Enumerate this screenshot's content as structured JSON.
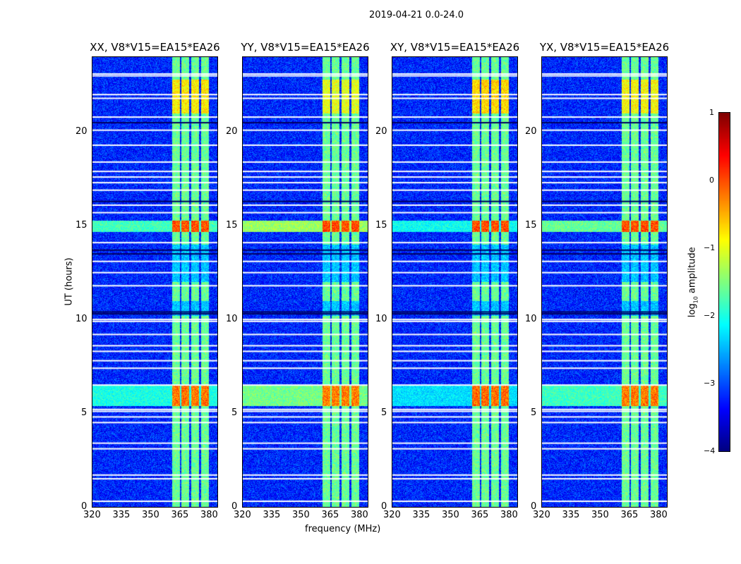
{
  "chart_data": {
    "type": "heatmap",
    "title": "2019-04-21 0.0-24.0",
    "xlabel": "frequency (MHz)",
    "ylabel": "UT (hours)",
    "xlim": [
      320,
      384
    ],
    "ylim": [
      0,
      24
    ],
    "xticks": [
      "320",
      "335",
      "350",
      "365",
      "380"
    ],
    "xtick_values": [
      320,
      335,
      350,
      365,
      380
    ],
    "yticks": [
      "0",
      "5",
      "10",
      "15",
      "20"
    ],
    "ytick_values": [
      0,
      5,
      10,
      15,
      20
    ],
    "panels": [
      {
        "title": "XX, V8*V15=EA15*EA26",
        "rfi_scale": 1.0
      },
      {
        "title": "YY, V8*V15=EA15*EA26",
        "rfi_scale": 1.25
      },
      {
        "title": "XY, V8*V15=EA15*EA26",
        "rfi_scale": 0.85
      },
      {
        "title": "YX, V8*V15=EA15*EA26",
        "rfi_scale": 1.1
      }
    ],
    "background_log_amplitude": -3.2,
    "rfi_bands_mhz": [
      [
        360.5,
        364.5
      ],
      [
        365.5,
        369.5
      ],
      [
        370.5,
        374.5
      ],
      [
        375.5,
        379.5
      ]
    ],
    "band_log_amplitude": -1.6,
    "rfi_events": [
      {
        "ut_start": 14.7,
        "ut_end": 15.3,
        "log_amplitude": 0.0,
        "broadband": true
      },
      {
        "ut_start": 5.4,
        "ut_end": 6.5,
        "log_amplitude": -0.2,
        "broadband": true
      },
      {
        "ut_start": 21.0,
        "ut_end": 22.8,
        "log_amplitude": -0.8,
        "broadband": false
      }
    ],
    "flagged_ut": [
      0.3,
      1.5,
      1.7,
      3.1,
      3.4,
      4.5,
      4.8,
      5.1,
      5.2,
      6.5,
      7.4,
      7.8,
      8.3,
      8.6,
      9.2,
      9.9,
      10.0,
      11.8,
      12.5,
      13.1,
      14.1,
      15.7,
      16.1,
      16.9,
      17.3,
      17.6,
      17.9,
      18.4,
      19.3,
      20.1,
      20.8,
      21.8,
      22.0,
      23.0,
      23.1
    ],
    "dark_ut": [
      10.3,
      10.4,
      13.5,
      13.7,
      16.3,
      20.5
    ],
    "colorbar": {
      "label": "log10 amplitude",
      "label_main": "log",
      "label_sub": "10",
      "label_rest": " amplitude",
      "range": [
        -4,
        1
      ],
      "ticks": [
        "−4",
        "−3",
        "−2",
        "−1",
        "0",
        "1"
      ],
      "tick_values": [
        -4,
        -3,
        -2,
        -1,
        0,
        1
      ],
      "colormap": "jet"
    }
  }
}
